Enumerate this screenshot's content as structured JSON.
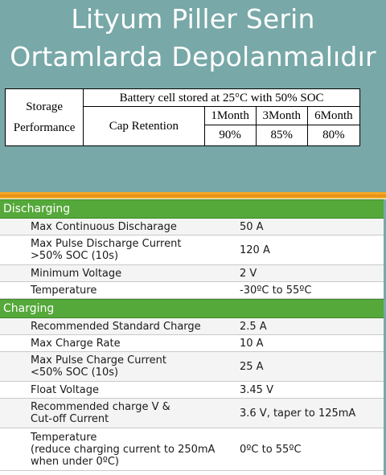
{
  "title": {
    "line1": "Lityum Piller Serin",
    "line2": "Ortamlarda Depolanmalıdır"
  },
  "storage_table": {
    "label_line1": "Storage",
    "label_line2": "Performance",
    "condition": "Battery cell stored at 25°C with 50% SOC",
    "periods": [
      "1Month",
      "3Month",
      "6Month"
    ],
    "row_label": "Cap Retention",
    "values": [
      "90%",
      "85%",
      "80%"
    ]
  },
  "discharging": {
    "header": "Discharging",
    "rows": [
      {
        "k": "Max Continuous Discharage",
        "v": "50 A"
      },
      {
        "k": "Max Pulse Discharge Current\n>50% SOC (10s)",
        "v": "120 A"
      },
      {
        "k": "Minimum Voltage",
        "v": "2 V"
      },
      {
        "k": "Temperature",
        "v": "-30ºC to 55ºC"
      }
    ]
  },
  "charging": {
    "header": "Charging",
    "rows": [
      {
        "k": "Recommended Standard Charge",
        "v": "2.5 A"
      },
      {
        "k": "Max Charge Rate",
        "v": "10 A"
      },
      {
        "k": "Max Pulse Charge Current\n<50% SOC (10s)",
        "v": "25 A"
      },
      {
        "k": "Float Voltage",
        "v": "3.45 V"
      },
      {
        "k": "Recommended charge V &\nCut-off Current",
        "v": "3.6 V, taper to 125mA"
      },
      {
        "k": "Temperature\n(reduce charging current to 250mA\nwhen under 0ºC)",
        "v": "0ºC to 55ºC"
      }
    ]
  },
  "colors": {
    "teal_background": "#78a8a8",
    "section_green": "#55a83a",
    "accent_orange": "#f5a623"
  }
}
